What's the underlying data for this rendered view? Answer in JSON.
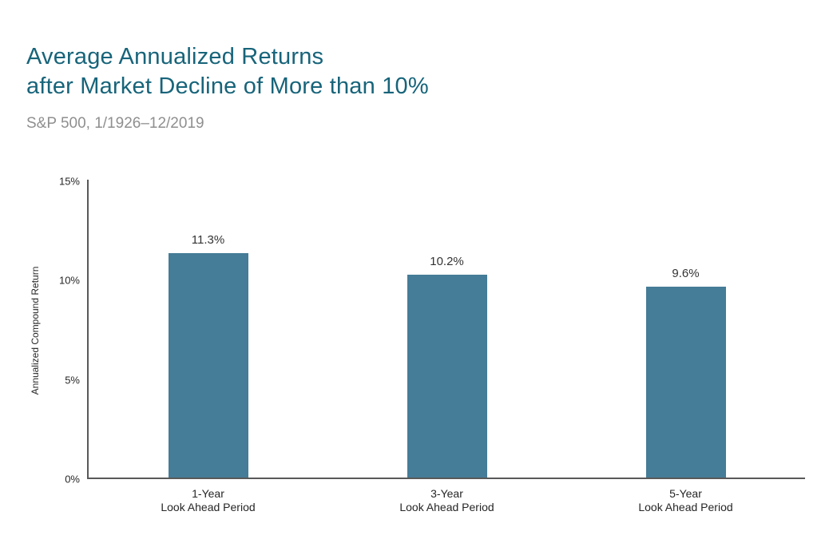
{
  "header": {
    "title_line1": "Average Annualized Returns",
    "title_line2": "after Market Decline of More than 10%",
    "subtitle": "S&P 500, 1/1926–12/2019"
  },
  "chart_data": {
    "type": "bar",
    "title": "Average Annualized Returns after Market Decline of More than 10%",
    "subtitle": "S&P 500, 1/1926–12/2019",
    "categories": [
      "1-Year",
      "3-Year",
      "5-Year"
    ],
    "category_line2": "Look Ahead Period",
    "values": [
      11.3,
      10.2,
      9.6
    ],
    "value_labels": [
      "11.3%",
      "10.2%",
      "9.6%"
    ],
    "xlabel": "",
    "ylabel": "Annualized Compound Return",
    "ylim": [
      0,
      15
    ],
    "yticks": [
      0,
      5,
      10,
      15
    ],
    "ytick_labels": [
      "0%",
      "5%",
      "10%",
      "15%"
    ],
    "grid": false,
    "legend": false
  },
  "colors": {
    "title": "#17647A",
    "subtitle": "#8F8F8F",
    "bar": "#457C97",
    "axis": "#595959",
    "tick_label": "#262626",
    "value_label": "#333333",
    "background": "#FFFFFF"
  }
}
